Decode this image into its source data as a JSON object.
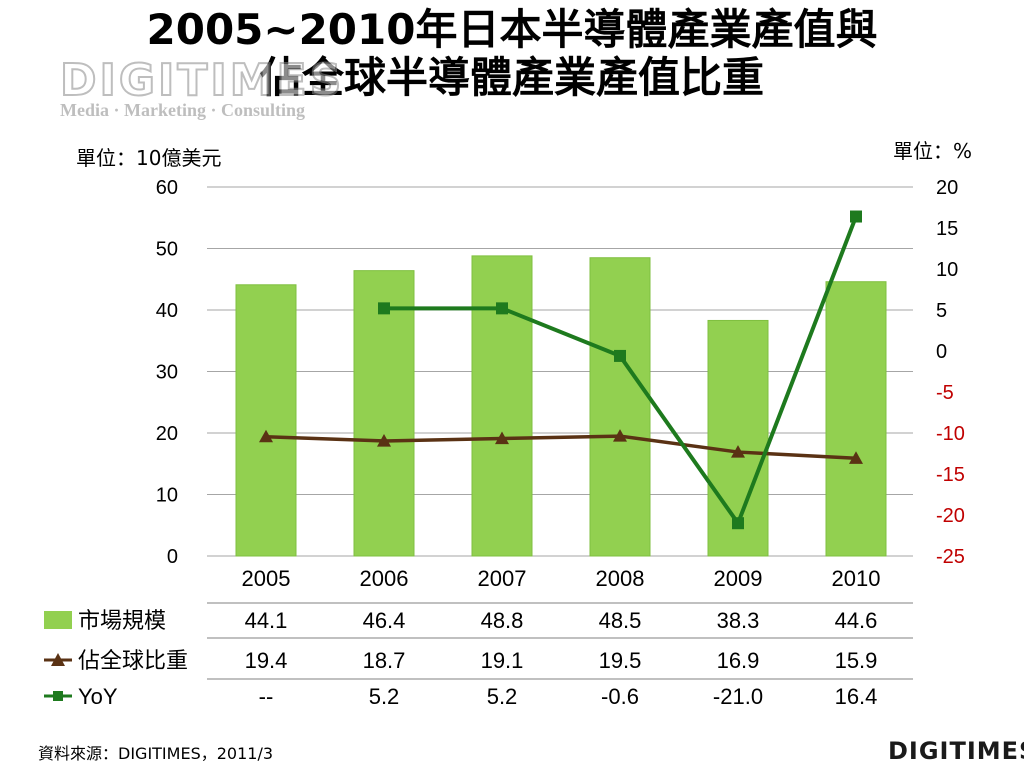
{
  "title": {
    "line1": "2005~2010年日本半導體產業產值與",
    "line2": "佔全球半導體產業產值比重"
  },
  "watermark": {
    "logo": "DIGITIMES",
    "tagline": "Media · Marketing · Consulting"
  },
  "units": {
    "left": "單位：10億美元",
    "right": "單位：%"
  },
  "chart_data": {
    "type": "bar",
    "categories": [
      "2005",
      "2006",
      "2007",
      "2008",
      "2009",
      "2010"
    ],
    "left_axis": {
      "ticks": [
        "0",
        "10",
        "20",
        "30",
        "40",
        "50",
        "60"
      ],
      "range": [
        0,
        60
      ]
    },
    "right_axis": {
      "ticks": [
        "20",
        "15",
        "10",
        "5",
        "0",
        "-5",
        "-10",
        "-15",
        "-20",
        "-25"
      ],
      "range": [
        -25,
        20
      ],
      "negative_color": "#c00000"
    },
    "grid": true,
    "colors": {
      "bar": "#92d050",
      "share": "#5a3214",
      "yoy": "#1e7a1e",
      "grid": "#a6a6a6"
    },
    "series": [
      {
        "name": "市場規模",
        "type": "bar",
        "axis": "left",
        "values": [
          44.1,
          46.4,
          48.8,
          48.5,
          38.3,
          44.6
        ],
        "labels": [
          "44.1",
          "46.4",
          "48.8",
          "48.5",
          "38.3",
          "44.6"
        ]
      },
      {
        "name": "佔全球比重",
        "type": "line",
        "marker": "triangle",
        "axis": "left",
        "values": [
          19.4,
          18.7,
          19.1,
          19.5,
          16.9,
          15.9
        ],
        "labels": [
          "19.4",
          "18.7",
          "19.1",
          "19.5",
          "16.9",
          "15.9"
        ]
      },
      {
        "name": "YoY",
        "type": "line",
        "marker": "square",
        "axis": "right",
        "values": [
          null,
          5.2,
          5.2,
          -0.6,
          -21.0,
          16.4
        ],
        "labels": [
          "--",
          "5.2",
          "5.2",
          "-0.6",
          "-21.0",
          "16.4"
        ]
      }
    ]
  },
  "source": "資料來源：DIGITIMES，2011/3",
  "brand": "DIGITIMES"
}
